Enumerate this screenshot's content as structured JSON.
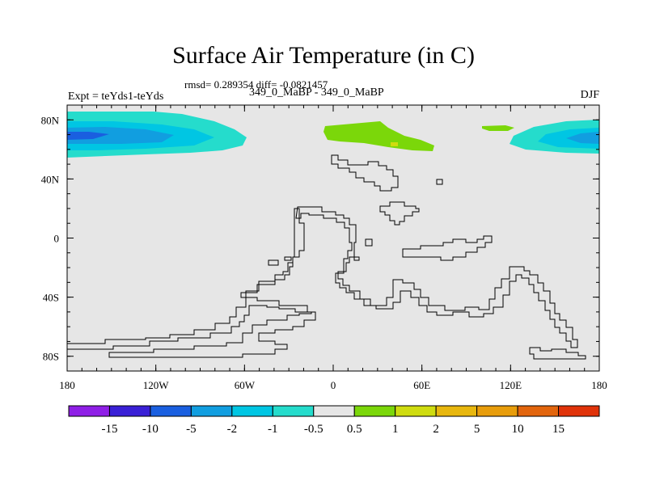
{
  "title": "Surface Air Temperature (in C)",
  "stats_text": "rmsd= 0.289354 diff= -0.0821457",
  "subtitle": "349_0_MaBP - 349_0_MaBP",
  "left_label": "Expt = teYds1-teYds",
  "right_label": "DJF",
  "map": {
    "background_color": "#e6e6e6",
    "lat_ticks": [
      {
        "value": 80,
        "label": "80N"
      },
      {
        "value": 40,
        "label": "40N"
      },
      {
        "value": 0,
        "label": "0"
      },
      {
        "value": -40,
        "label": "40S"
      },
      {
        "value": -80,
        "label": "80S"
      }
    ],
    "lon_ticks": [
      {
        "value": -180,
        "label": "180"
      },
      {
        "value": -120,
        "label": "120W"
      },
      {
        "value": -60,
        "label": "60W"
      },
      {
        "value": 0,
        "label": "0"
      },
      {
        "value": 60,
        "label": "60E"
      },
      {
        "value": 120,
        "label": "120E"
      },
      {
        "value": 180,
        "label": "180"
      }
    ]
  },
  "colorbar": {
    "colors": [
      "#8f1fe6",
      "#3a20d6",
      "#1a5fe0",
      "#119ee0",
      "#00c6e3",
      "#25dccc",
      "#e6e6e6",
      "#7bd70a",
      "#cfdc10",
      "#e8b70e",
      "#e89d0b",
      "#e2650d",
      "#e0330a"
    ],
    "labels": [
      "-15",
      "-10",
      "-5",
      "-2",
      "-1",
      "-0.5",
      "0.5",
      "1",
      "2",
      "5",
      "10",
      "15"
    ]
  }
}
